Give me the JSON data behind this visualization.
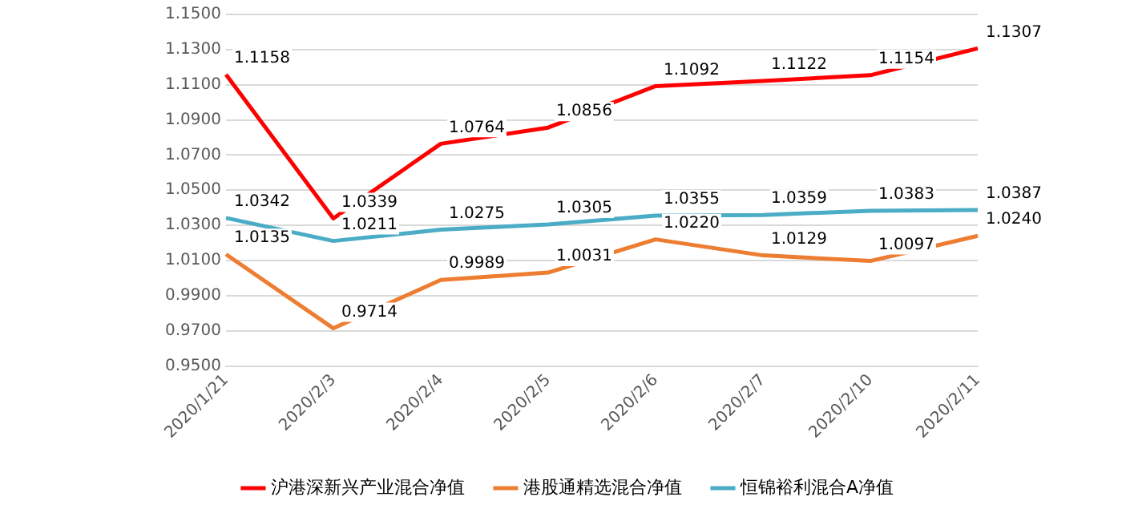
{
  "chart_data": {
    "type": "line",
    "categories": [
      "2020/1/21",
      "2020/2/3",
      "2020/2/4",
      "2020/2/5",
      "2020/2/6",
      "2020/2/7",
      "2020/2/10",
      "2020/2/11"
    ],
    "series": [
      {
        "name": "沪港深新兴产业混合净值",
        "color": "#ff0000",
        "values": [
          1.1158,
          1.0339,
          1.0764,
          1.0856,
          1.1092,
          1.1122,
          1.1154,
          1.1307
        ],
        "value_labels": [
          "1.1158",
          "1.0339",
          "1.0764",
          "1.0856",
          "1.1092",
          "1.1122",
          "1.1154",
          "1.1307"
        ]
      },
      {
        "name": "港股通精选混合净值",
        "color": "#ed7d31",
        "values": [
          1.0135,
          0.9714,
          0.9989,
          1.0031,
          1.022,
          1.0129,
          1.0097,
          1.024
        ],
        "value_labels": [
          "1.0135",
          "0.9714",
          "0.9989",
          "1.0031",
          "1.0220",
          "1.0129",
          "1.0097",
          "1.0240"
        ]
      },
      {
        "name": "恒锦裕利混合A净值",
        "color": "#4bacc6",
        "values": [
          1.0342,
          1.0211,
          1.0275,
          1.0305,
          1.0355,
          1.0359,
          1.0383,
          1.0387
        ],
        "value_labels": [
          "1.0342",
          "1.0211",
          "1.0275",
          "1.0305",
          "1.0355",
          "1.0359",
          "1.0383",
          "1.0387"
        ]
      }
    ],
    "ylim": [
      0.95,
      1.15
    ],
    "yticks": [
      {
        "value": 0.95,
        "label": "0.9500"
      },
      {
        "value": 0.97,
        "label": "0.9700"
      },
      {
        "value": 0.99,
        "label": "0.9900"
      },
      {
        "value": 1.01,
        "label": "1.0100"
      },
      {
        "value": 1.03,
        "label": "1.0300"
      },
      {
        "value": 1.05,
        "label": "1.0500"
      },
      {
        "value": 1.07,
        "label": "1.0700"
      },
      {
        "value": 1.09,
        "label": "1.0900"
      },
      {
        "value": 1.11,
        "label": "1.1100"
      },
      {
        "value": 1.13,
        "label": "1.1300"
      },
      {
        "value": 1.15,
        "label": "1.1500"
      }
    ],
    "grid": "y",
    "legend": "bottom",
    "marker": "none",
    "line_style": "solid"
  }
}
